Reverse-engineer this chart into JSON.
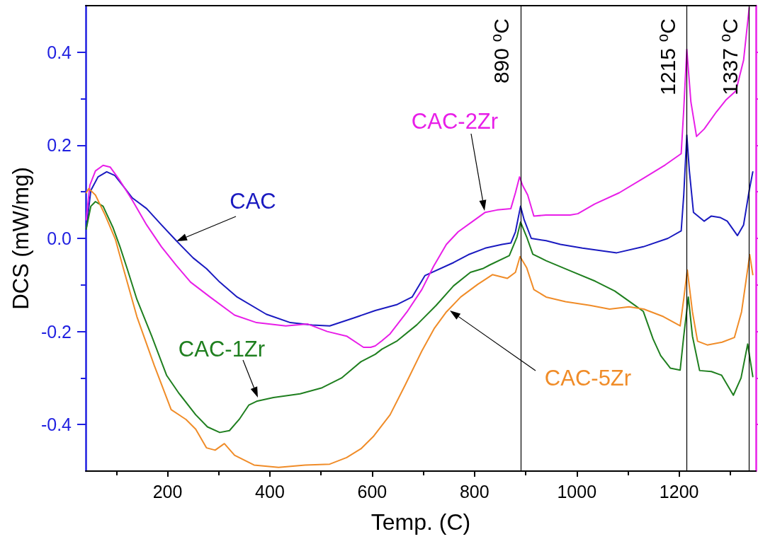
{
  "chart_data": {
    "type": "line",
    "xlabel": "Temp. (C)",
    "ylabel": "DCS (mW/mg)",
    "xlim": [
      40,
      1350
    ],
    "ylim": [
      -0.5,
      0.5
    ],
    "xticks": [
      {
        "value": 100,
        "label": null
      },
      200,
      {
        "value": 300,
        "label": null
      },
      400,
      {
        "value": 500,
        "label": null
      },
      600,
      {
        "value": 700,
        "label": null
      },
      800,
      {
        "value": 900,
        "label": null
      },
      1000,
      {
        "value": 1100,
        "label": null
      },
      1200,
      {
        "value": 1300,
        "label": null
      }
    ],
    "yticks": [
      -0.4,
      {
        "value": -0.3,
        "label": null
      },
      -0.2,
      {
        "value": -0.1,
        "label": null
      },
      {
        "value": 0,
        "label": "0.0"
      },
      {
        "value": 0.1,
        "label": null
      },
      0.2,
      {
        "value": 0.3,
        "label": null
      },
      0.4
    ],
    "grid": false,
    "legend": false,
    "marker": "none",
    "line_style": "solid",
    "ref_lines": [
      {
        "axis": "x",
        "value": 890,
        "label": "890 ⁰C",
        "color": "#000000"
      },
      {
        "axis": "x",
        "value": 1215,
        "label": "1215 ⁰C",
        "color": "#000000"
      },
      {
        "axis": "x",
        "value": 1337,
        "label": "1337 ⁰C",
        "color": "#000000"
      }
    ],
    "series": [
      {
        "name": "CAC",
        "color": "#1a1ac0",
        "x": [
          41,
          50,
          64,
          81,
          97,
          112,
          131,
          159,
          188,
          217,
          250,
          276,
          302,
          336,
          393,
          440,
          483,
          517,
          564,
          606,
          649,
          678,
          703,
          759,
          788,
          821,
          854,
          871,
          880,
          890,
          897,
          911,
          940,
          968,
          1011,
          1078,
          1130,
          1178,
          1204,
          1209,
          1215,
          1220,
          1228,
          1249,
          1263,
          1280,
          1294,
          1314,
          1326,
          1337,
          1344
        ],
        "values": [
          0.02,
          0.103,
          0.132,
          0.143,
          0.135,
          0.114,
          0.087,
          0.064,
          0.029,
          -0.005,
          -0.042,
          -0.065,
          -0.094,
          -0.126,
          -0.163,
          -0.181,
          -0.186,
          -0.188,
          -0.171,
          -0.155,
          -0.142,
          -0.126,
          -0.08,
          -0.052,
          -0.035,
          -0.021,
          -0.013,
          -0.01,
          0.014,
          0.069,
          0.04,
          0.0,
          -0.005,
          -0.013,
          -0.021,
          -0.031,
          -0.018,
          0.0,
          0.016,
          0.093,
          0.222,
          0.145,
          0.056,
          0.037,
          0.048,
          0.045,
          0.037,
          0.006,
          0.029,
          0.103,
          0.143
        ]
      },
      {
        "name": "CAC-1Zr",
        "color": "#1f7f1f",
        "x": [
          41,
          50,
          59,
          74,
          93,
          107,
          121,
          140,
          169,
          198,
          221,
          255,
          278,
          302,
          321,
          340,
          359,
          374,
          407,
          459,
          502,
          540,
          578,
          606,
          619,
          649,
          687,
          725,
          759,
          792,
          816,
          830,
          868,
          883,
          890,
          902,
          914,
          940,
          988,
          1036,
          1074,
          1111,
          1130,
          1149,
          1164,
          1183,
          1202,
          1209,
          1218,
          1226,
          1240,
          1263,
          1283,
          1306,
          1321,
          1334,
          1344
        ],
        "values": [
          0.02,
          0.069,
          0.079,
          0.069,
          0.024,
          -0.018,
          -0.065,
          -0.131,
          -0.21,
          -0.294,
          -0.331,
          -0.379,
          -0.405,
          -0.417,
          -0.413,
          -0.389,
          -0.358,
          -0.35,
          -0.342,
          -0.334,
          -0.321,
          -0.3,
          -0.265,
          -0.249,
          -0.238,
          -0.22,
          -0.186,
          -0.144,
          -0.102,
          -0.073,
          -0.065,
          -0.057,
          -0.037,
          0.003,
          0.035,
          0.003,
          -0.034,
          -0.048,
          -0.07,
          -0.092,
          -0.113,
          -0.142,
          -0.157,
          -0.216,
          -0.252,
          -0.279,
          -0.283,
          -0.21,
          -0.126,
          -0.21,
          -0.284,
          -0.286,
          -0.294,
          -0.337,
          -0.3,
          -0.227,
          -0.297
        ]
      },
      {
        "name": "CAC-2Zr",
        "color": "#e81ee8",
        "x": [
          41,
          48,
          59,
          74,
          88,
          107,
          131,
          159,
          188,
          217,
          245,
          283,
          331,
          374,
          431,
          474,
          512,
          550,
          583,
          597,
          606,
          619,
          635,
          668,
          697,
          720,
          745,
          768,
          797,
          821,
          844,
          871,
          880,
          888,
          894,
          904,
          916,
          940,
          987,
          1002,
          1035,
          1083,
          1130,
          1173,
          1204,
          1209,
          1215,
          1223,
          1234,
          1249,
          1273,
          1292,
          1311,
          1326,
          1337
        ],
        "values": [
          0.04,
          0.114,
          0.145,
          0.157,
          0.153,
          0.124,
          0.082,
          0.029,
          -0.018,
          -0.058,
          -0.094,
          -0.126,
          -0.165,
          -0.181,
          -0.188,
          -0.184,
          -0.2,
          -0.21,
          -0.234,
          -0.234,
          -0.231,
          -0.22,
          -0.205,
          -0.158,
          -0.11,
          -0.06,
          -0.013,
          0.014,
          0.037,
          0.056,
          0.061,
          0.064,
          0.098,
          0.132,
          0.114,
          0.093,
          0.048,
          0.05,
          0.05,
          0.053,
          0.074,
          0.098,
          0.129,
          0.158,
          0.182,
          0.277,
          0.406,
          0.293,
          0.219,
          0.235,
          0.272,
          0.298,
          0.317,
          0.383,
          0.496
        ]
      },
      {
        "name": "CAC-5Zr",
        "color": "#f08c28",
        "x": [
          41,
          46,
          59,
          78,
          98,
          112,
          140,
          174,
          207,
          236,
          255,
          276,
          293,
          311,
          331,
          369,
          417,
          469,
          517,
          550,
          578,
          602,
          635,
          664,
          697,
          721,
          745,
          773,
          806,
          835,
          864,
          880,
          889,
          902,
          916,
          940,
          978,
          1026,
          1064,
          1102,
          1131,
          1169,
          1202,
          1209,
          1216,
          1226,
          1236,
          1255,
          1284,
          1308,
          1322,
          1338,
          1344
        ],
        "values": [
          0.098,
          0.107,
          0.093,
          0.05,
          -0.002,
          -0.058,
          -0.168,
          -0.273,
          -0.368,
          -0.389,
          -0.41,
          -0.45,
          -0.455,
          -0.441,
          -0.466,
          -0.487,
          -0.492,
          -0.487,
          -0.485,
          -0.471,
          -0.452,
          -0.426,
          -0.379,
          -0.316,
          -0.242,
          -0.194,
          -0.158,
          -0.126,
          -0.099,
          -0.078,
          -0.086,
          -0.073,
          -0.039,
          -0.063,
          -0.11,
          -0.126,
          -0.136,
          -0.144,
          -0.152,
          -0.147,
          -0.152,
          -0.168,
          -0.188,
          -0.13,
          -0.068,
          -0.158,
          -0.221,
          -0.229,
          -0.223,
          -0.213,
          -0.158,
          -0.035,
          -0.078
        ]
      }
    ]
  }
}
